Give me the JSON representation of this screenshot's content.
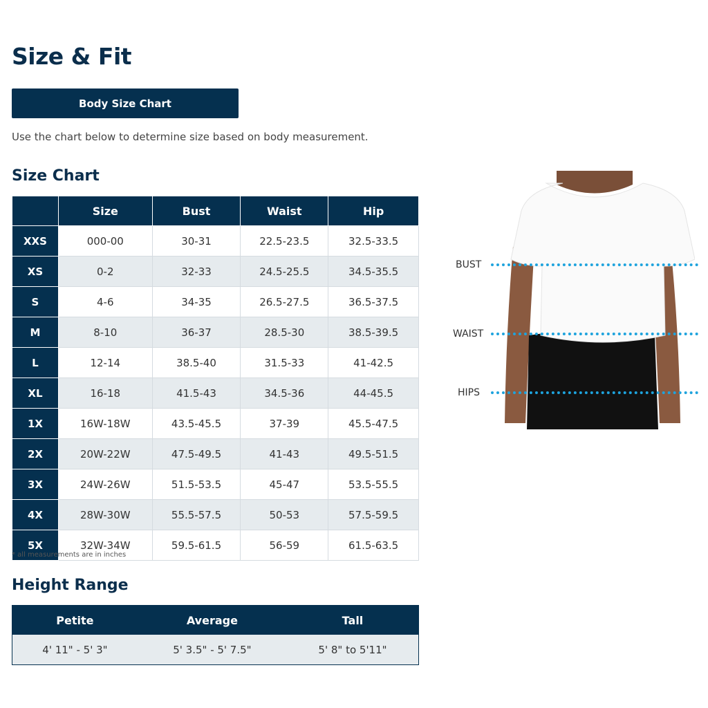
{
  "title": "Size & Fit",
  "button": "Body Size Chart",
  "description": "Use the chart below to determine size based on body measurement.",
  "size_chart": {
    "heading": "Size Chart",
    "columns": [
      "",
      "Size",
      "Bust",
      "Waist",
      "Hip"
    ],
    "rows": [
      [
        "XXS",
        "000-00",
        "30-31",
        "22.5-23.5",
        "32.5-33.5"
      ],
      [
        "XS",
        "0-2",
        "32-33",
        "24.5-25.5",
        "34.5-35.5"
      ],
      [
        "S",
        "4-6",
        "34-35",
        "26.5-27.5",
        "36.5-37.5"
      ],
      [
        "M",
        "8-10",
        "36-37",
        "28.5-30",
        "38.5-39.5"
      ],
      [
        "L",
        "12-14",
        "38.5-40",
        "31.5-33",
        "41-42.5"
      ],
      [
        "XL",
        "16-18",
        "41.5-43",
        "34.5-36",
        "44-45.5"
      ],
      [
        "1X",
        "16W-18W",
        "43.5-45.5",
        "37-39",
        "45.5-47.5"
      ],
      [
        "2X",
        "20W-22W",
        "47.5-49.5",
        "41-43",
        "49.5-51.5"
      ],
      [
        "3X",
        "24W-26W",
        "51.5-53.5",
        "45-47",
        "53.5-55.5"
      ],
      [
        "4X",
        "28W-30W",
        "55.5-57.5",
        "50-53",
        "57.5-59.5"
      ],
      [
        "5X",
        "32W-34W",
        "59.5-61.5",
        "56-59",
        "61.5-63.5"
      ]
    ],
    "note": "* all measurements are in inches"
  },
  "height_range": {
    "heading": "Height Range",
    "columns": [
      "Petite",
      "Average",
      "Tall"
    ],
    "values": [
      "4' 11\" - 5' 3\"",
      "5' 3.5\" - 5' 7.5\"",
      "5' 8\" to 5'11\""
    ]
  },
  "figure": {
    "labels": [
      "BUST",
      "WAIST",
      "HIPS"
    ],
    "line_color": "#1ea3dd"
  },
  "colors": {
    "navy": "#05304f",
    "stripe": "#e6ebee"
  }
}
